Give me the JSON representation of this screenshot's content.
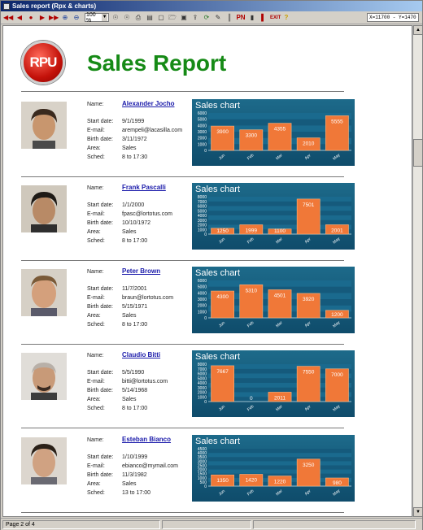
{
  "window": {
    "title": "Sales report (Rpx & charts)"
  },
  "toolbar": {
    "zoom": "100 %",
    "coords": "X=11700  -  Y=1470",
    "icons": [
      "first-page-icon",
      "prev-page-icon",
      "stop-icon",
      "next-page-icon",
      "last-page-icon",
      "zoom-in-icon",
      "zoom-out-icon",
      "find-icon",
      "find-next-icon",
      "print-icon",
      "printer-setup-icon",
      "page-setup-icon",
      "open-icon",
      "save-icon",
      "export-icon",
      "refresh-icon",
      "pen-icon",
      "columns-icon",
      "pn-icon",
      "bars-icon",
      "chart-icon",
      "exit-icon",
      "help-icon"
    ]
  },
  "report": {
    "logo_text": "RPU",
    "title": "Sales Report",
    "labels": {
      "name": "Name:",
      "start": "Start date:",
      "email": "E-mail:",
      "birth": "Birth date:",
      "area": "Area:",
      "sched": "Sched:"
    }
  },
  "employees": [
    {
      "name": "Alexander Jocho",
      "start": "9/1/1999",
      "email": "arempeli@lacasilla.com",
      "birth": "3/11/1972",
      "area": "Sales",
      "sched": "8 to 17:30"
    },
    {
      "name": "Frank Pascalli",
      "start": "1/1/2000",
      "email": "fpasc@lortotus.com",
      "birth": "10/10/1972",
      "area": "Sales",
      "sched": "8 to 17:00"
    },
    {
      "name": "Peter Brown",
      "start": "11/7/2001",
      "email": "braun@lortotus.com",
      "birth": "5/15/1971",
      "area": "Sales",
      "sched": "8 to 17:00"
    },
    {
      "name": "Claudio Bitti",
      "start": "5/5/1990",
      "email": "bitti@lortotus.com",
      "birth": "5/14/1968",
      "area": "Sales",
      "sched": "8 to 17:00"
    },
    {
      "name": "Esteban Bianco",
      "start": "1/10/1999",
      "email": "ebianco@mymail.com",
      "birth": "11/3/1982",
      "area": "Sales",
      "sched": "13 to 17:00"
    }
  ],
  "chart_data": [
    {
      "type": "bar",
      "title": "Sales chart",
      "categories": [
        "Jun",
        "Feb",
        "Mar",
        "Apr",
        "May"
      ],
      "values": [
        3900,
        3300,
        4355,
        2010,
        5555
      ],
      "ylim": [
        0,
        6000
      ],
      "yticks": [
        0,
        1000,
        2000,
        3000,
        4000,
        5000,
        6000
      ]
    },
    {
      "type": "bar",
      "title": "Sales chart",
      "categories": [
        "Jun",
        "Feb",
        "Mar",
        "Apr",
        "May"
      ],
      "values": [
        1250,
        1999,
        1100,
        7501,
        2001
      ],
      "ylim": [
        0,
        8000
      ],
      "yticks": [
        0,
        1000,
        2000,
        3000,
        4000,
        5000,
        6000,
        7000,
        8000
      ]
    },
    {
      "type": "bar",
      "title": "Sales chart",
      "categories": [
        "Jun",
        "Feb",
        "Mar",
        "Apr",
        "May"
      ],
      "values": [
        4300,
        5310,
        4501,
        3920,
        1200
      ],
      "ylim": [
        0,
        6000
      ],
      "yticks": [
        0,
        1000,
        2000,
        3000,
        4000,
        5000,
        6000
      ]
    },
    {
      "type": "bar",
      "title": "Sales chart",
      "categories": [
        "Jun",
        "Feb",
        "Mar",
        "Apr",
        "May"
      ],
      "values": [
        7667,
        0,
        2011,
        7550,
        7000
      ],
      "ylim": [
        0,
        8000
      ],
      "yticks": [
        0,
        1000,
        2000,
        3000,
        4000,
        5000,
        6000,
        7000,
        8000
      ]
    },
    {
      "type": "bar",
      "title": "Sales chart",
      "categories": [
        "Jun",
        "Feb",
        "Mar",
        "Apr",
        "May"
      ],
      "values": [
        1350,
        1420,
        1220,
        3250,
        980
      ],
      "ylim": [
        0,
        4500
      ],
      "yticks": [
        0,
        500,
        1000,
        1500,
        2000,
        2500,
        3000,
        3500,
        4000,
        4500
      ]
    }
  ],
  "status": {
    "page": "Page 2 of 4"
  },
  "colors": {
    "title_green": "#168a16",
    "bar_orange": "#f07838",
    "chart_bg": "#1d6a8a"
  }
}
